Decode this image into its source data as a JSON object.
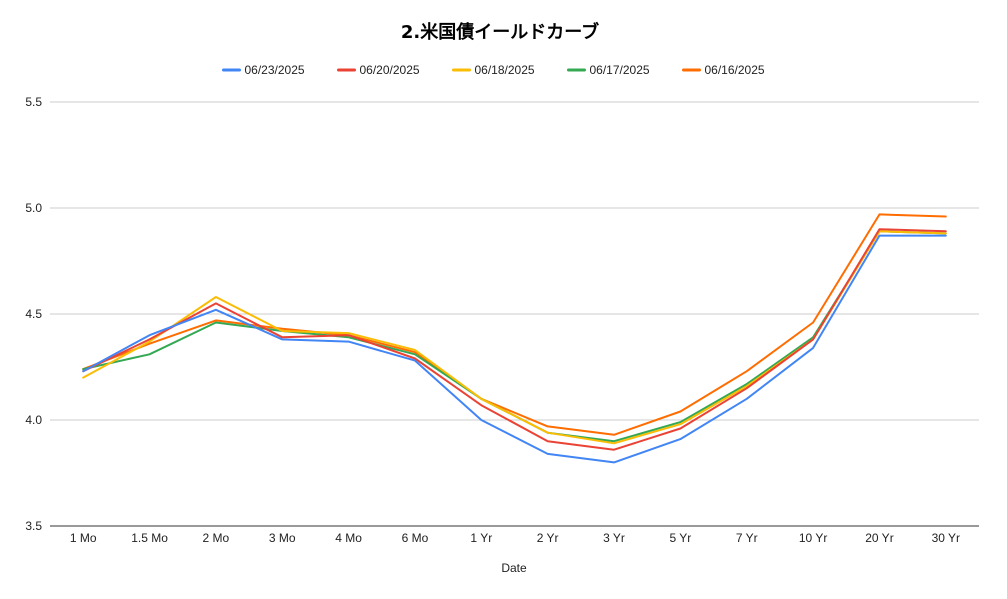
{
  "chart_data": {
    "type": "line",
    "title": "2.米国債イールドカーブ",
    "xlabel": "Date",
    "ylabel": "",
    "ylim": [
      3.5,
      5.5
    ],
    "yticks": [
      "3.5",
      "4.0",
      "4.5",
      "5.0",
      "5.5"
    ],
    "grid": true,
    "legend_position": "top",
    "categories": [
      "1 Mo",
      "1.5 Mo",
      "2 Mo",
      "3 Mo",
      "4 Mo",
      "6 Mo",
      "1 Yr",
      "2 Yr",
      "3 Yr",
      "5 Yr",
      "7 Yr",
      "10 Yr",
      "20 Yr",
      "30 Yr"
    ],
    "series": [
      {
        "name": "06/23/2025",
        "color": "#4285f4",
        "values": [
          4.23,
          4.4,
          4.52,
          4.38,
          4.37,
          4.28,
          4.0,
          3.84,
          3.8,
          3.91,
          4.1,
          4.34,
          4.87,
          4.87
        ]
      },
      {
        "name": "06/20/2025",
        "color": "#ea4335",
        "values": [
          4.23,
          4.38,
          4.55,
          4.39,
          4.4,
          4.29,
          4.07,
          3.9,
          3.86,
          3.96,
          4.15,
          4.38,
          4.9,
          4.89
        ]
      },
      {
        "name": "06/18/2025",
        "color": "#fbbc04",
        "values": [
          4.2,
          4.37,
          4.58,
          4.42,
          4.41,
          4.33,
          4.1,
          3.94,
          3.89,
          3.98,
          4.16,
          4.38,
          4.89,
          4.88
        ]
      },
      {
        "name": "06/17/2025",
        "color": "#34a853",
        "values": [
          4.24,
          4.31,
          4.46,
          4.42,
          4.39,
          4.31,
          4.1,
          3.94,
          3.9,
          3.99,
          4.17,
          4.39,
          4.89,
          4.88
        ]
      },
      {
        "name": "06/16/2025",
        "color": "#ff6d01",
        "values": [
          4.24,
          4.36,
          4.47,
          4.43,
          4.4,
          4.32,
          4.1,
          3.97,
          3.93,
          4.04,
          4.23,
          4.46,
          4.97,
          4.96
        ]
      }
    ]
  }
}
